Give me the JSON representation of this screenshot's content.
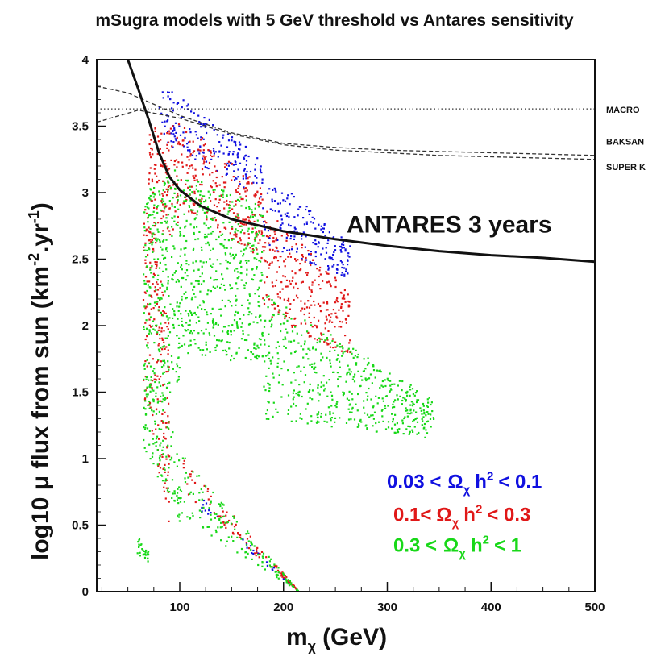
{
  "chart_data": {
    "type": "scatter",
    "title": "mSugra models with 5 GeV threshold vs Antares sensitivity",
    "xlabel": "m_χ (GeV)",
    "xlabel_main": "m",
    "xlabel_sub": "χ",
    "xlabel_unit": "(GeV)",
    "ylabel": "log10 μ flux from sun (km⁻².yr⁻¹)",
    "ylabel_main": "log10 μ flux from sun (km",
    "ylabel_sup1": "-2",
    "ylabel_mid": ".yr",
    "ylabel_sup2": "-1",
    "ylabel_end": ")",
    "xlim": [
      20,
      500
    ],
    "ylim": [
      0,
      4
    ],
    "xticks": [
      "100",
      "200",
      "300",
      "400",
      "500"
    ],
    "yticks": [
      "0",
      "0.5",
      "1",
      "1.5",
      "2",
      "2.5",
      "3",
      "3.5",
      "4"
    ],
    "series": [
      {
        "name": "0.03 < Ωχ h² < 0.1",
        "color": "#1010e0",
        "regions": [
          {
            "x": [
              80,
              100
            ],
            "y_top": [
              3.82,
              3.72
            ],
            "y_bottom": [
              3.42,
              3.3
            ]
          },
          {
            "x": [
              100,
              180
            ],
            "y_top": [
              3.72,
              3.25
            ],
            "y_bottom": [
              3.3,
              2.95
            ]
          },
          {
            "x": [
              180,
              265
            ],
            "y_top": [
              3.2,
              2.6
            ],
            "y_bottom": [
              2.6,
              2.35
            ]
          },
          {
            "x": [
              120,
              215
            ],
            "y_top": [
              0.72,
              0.0
            ],
            "y_bottom": [
              0.6,
              0.0
            ]
          }
        ]
      },
      {
        "name": "0.1 < Ωχ h² < 0.3",
        "color": "#e01818",
        "regions": [
          {
            "x": [
              70,
              100
            ],
            "y_top": [
              3.5,
              3.55
            ],
            "y_bottom": [
              2.6,
              2.7
            ]
          },
          {
            "x": [
              100,
              180
            ],
            "y_top": [
              3.55,
              3.05
            ],
            "y_bottom": [
              2.9,
              2.5
            ]
          },
          {
            "x": [
              180,
              265
            ],
            "y_top": [
              2.9,
              2.25
            ],
            "y_bottom": [
              2.1,
              1.75
            ]
          },
          {
            "x": [
              65,
              90
            ],
            "y_top": [
              3.0,
              2.0
            ],
            "y_bottom": [
              1.5,
              0.5
            ]
          },
          {
            "x": [
              100,
              215
            ],
            "y_top": [
              1.05,
              0.0
            ],
            "y_bottom": [
              0.75,
              0.0
            ]
          }
        ]
      },
      {
        "name": "0.3 < Ωχ h² < 1",
        "color": "#18d818",
        "regions": [
          {
            "x": [
              65,
              100
            ],
            "y_top": [
              3.0,
              3.2
            ],
            "y_bottom": [
              1.2,
              1.6
            ]
          },
          {
            "x": [
              100,
              180
            ],
            "y_top": [
              3.15,
              2.9
            ],
            "y_bottom": [
              1.8,
              1.7
            ]
          },
          {
            "x": [
              180,
              345
            ],
            "y_top": [
              2.25,
              1.45
            ],
            "y_bottom": [
              1.3,
              1.15
            ]
          },
          {
            "x": [
              65,
              100
            ],
            "y_top": [
              1.7,
              1.1
            ],
            "y_bottom": [
              1.1,
              0.5
            ]
          },
          {
            "x": [
              100,
              215
            ],
            "y_top": [
              1.05,
              0.0
            ],
            "y_bottom": [
              0.55,
              0.0
            ]
          },
          {
            "x": [
              58,
              70
            ],
            "y_top": [
              0.45,
              0.3
            ],
            "y_bottom": [
              0.3,
              0.2
            ]
          }
        ]
      }
    ],
    "reference_lines": [
      {
        "name": "MACRO",
        "style": "dotted",
        "points": [
          [
            20,
            3.63
          ],
          [
            500,
            3.63
          ]
        ]
      },
      {
        "name": "BAKSAN",
        "style": "dashed",
        "points": [
          [
            20,
            3.8
          ],
          [
            50,
            3.75
          ],
          [
            100,
            3.58
          ],
          [
            150,
            3.45
          ],
          [
            200,
            3.37
          ],
          [
            250,
            3.34
          ],
          [
            300,
            3.32
          ],
          [
            350,
            3.31
          ],
          [
            400,
            3.3
          ],
          [
            450,
            3.29
          ],
          [
            500,
            3.28
          ]
        ]
      },
      {
        "name": "SUPER K",
        "style": "dashed",
        "points": [
          [
            20,
            3.53
          ],
          [
            60,
            3.62
          ],
          [
            100,
            3.56
          ],
          [
            150,
            3.44
          ],
          [
            200,
            3.36
          ],
          [
            250,
            3.32
          ],
          [
            300,
            3.3
          ],
          [
            350,
            3.28
          ],
          [
            400,
            3.27
          ],
          [
            450,
            3.26
          ],
          [
            500,
            3.25
          ]
        ]
      }
    ],
    "sensitivity_curve": {
      "name": "ANTARES 3 years",
      "style": "solid",
      "points": [
        [
          50,
          4.0
        ],
        [
          60,
          3.78
        ],
        [
          70,
          3.55
        ],
        [
          80,
          3.3
        ],
        [
          90,
          3.12
        ],
        [
          100,
          3.02
        ],
        [
          120,
          2.9
        ],
        [
          150,
          2.8
        ],
        [
          200,
          2.71
        ],
        [
          250,
          2.65
        ],
        [
          300,
          2.6
        ],
        [
          350,
          2.56
        ],
        [
          400,
          2.53
        ],
        [
          450,
          2.51
        ],
        [
          500,
          2.48
        ]
      ]
    },
    "legend": [
      {
        "pre": "0.03 <",
        "omega": "Ω",
        "sub": "χ",
        "h": "h",
        "sup": "2",
        "post": "< 0.1",
        "color": "#1010e0"
      },
      {
        "pre": "0.1<",
        "omega": "Ω",
        "sub": "χ",
        "h": "h",
        "sup": "2",
        "post": "< 0.3",
        "color": "#e01818"
      },
      {
        "pre": "0.3 <",
        "omega": "Ω",
        "sub": "χ",
        "h": "h",
        "sup": "2",
        "post": "< 1",
        "color": "#18d818"
      }
    ],
    "legend_placement": "bottom-right"
  }
}
